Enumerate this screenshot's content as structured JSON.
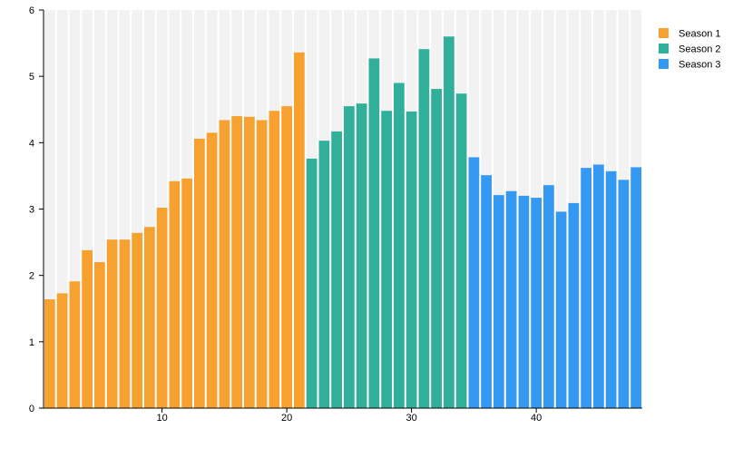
{
  "chart_data": {
    "type": "bar",
    "title": "",
    "xlabel": "",
    "ylabel": "",
    "ylim": [
      0,
      6
    ],
    "xlim": [
      1,
      48
    ],
    "x_ticks": [
      10,
      20,
      30,
      40
    ],
    "y_ticks": [
      0,
      1,
      2,
      3,
      4,
      5,
      6
    ],
    "grid": false,
    "background_bars": true,
    "legend_position": "right",
    "series": [
      {
        "name": "Season 1",
        "color": "#f7a131",
        "x": [
          1,
          2,
          3,
          4,
          5,
          6,
          7,
          8,
          9,
          10,
          11,
          12,
          13,
          14,
          15,
          16,
          17,
          18,
          19,
          20,
          21
        ],
        "values": [
          1.64,
          1.73,
          1.91,
          2.38,
          2.2,
          2.54,
          2.54,
          2.64,
          2.73,
          3.02,
          3.42,
          3.46,
          4.06,
          4.15,
          4.34,
          4.4,
          4.39,
          4.34,
          4.48,
          4.55,
          5.36
        ]
      },
      {
        "name": "Season 2",
        "color": "#30b09a",
        "x": [
          22,
          23,
          24,
          25,
          26,
          27,
          28,
          29,
          30,
          31,
          32,
          33,
          34
        ],
        "values": [
          3.76,
          4.03,
          4.17,
          4.55,
          4.59,
          5.27,
          4.48,
          4.9,
          4.47,
          5.41,
          4.81,
          5.6,
          4.74
        ]
      },
      {
        "name": "Season 3",
        "color": "#3598f2",
        "x": [
          35,
          36,
          37,
          38,
          39,
          40,
          41,
          42,
          43,
          44,
          45,
          46,
          47,
          48
        ],
        "values": [
          3.78,
          3.51,
          3.21,
          3.27,
          3.2,
          3.17,
          3.36,
          2.96,
          3.09,
          3.62,
          3.67,
          3.57,
          3.44,
          3.63
        ]
      }
    ]
  }
}
